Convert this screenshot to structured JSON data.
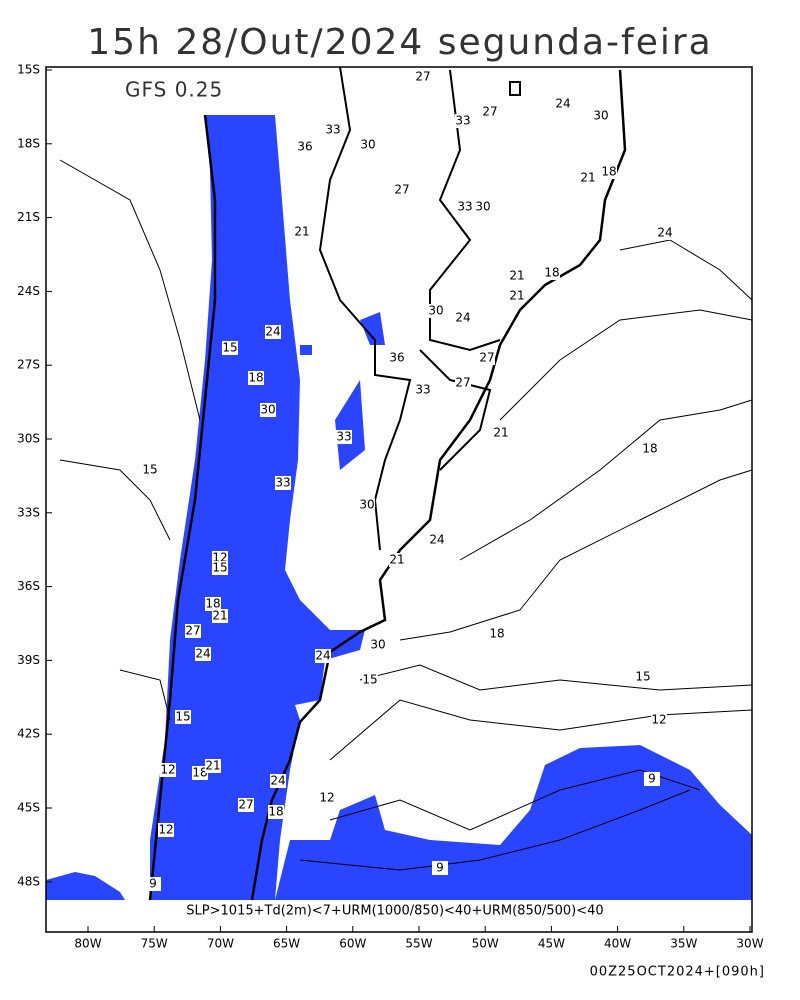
{
  "header": {
    "title": "15h 28/Out/2024 segunda-feira",
    "model": "GFS 0.25"
  },
  "axes": {
    "lat_labels": [
      "15S",
      "18S",
      "21S",
      "24S",
      "27S",
      "30S",
      "33S",
      "36S",
      "39S",
      "42S",
      "45S",
      "48S"
    ],
    "lon_labels": [
      "80W",
      "75W",
      "70W",
      "65W",
      "60W",
      "55W",
      "50W",
      "45W",
      "40W",
      "35W",
      "30W"
    ]
  },
  "contour_labels": [
    "27",
    "24",
    "30",
    "27",
    "33",
    "30",
    "36",
    "33",
    "27",
    "18",
    "21",
    "33",
    "30",
    "24",
    "21",
    "18",
    "21",
    "30",
    "24",
    "36",
    "27",
    "33",
    "27",
    "21",
    "18",
    "30",
    "24",
    "21",
    "15",
    "18",
    "15",
    "12",
    "9",
    "12",
    "9",
    "15",
    "24",
    "30",
    "33",
    "12",
    "15",
    "18",
    "21",
    "27",
    "24",
    "15",
    "12",
    "18",
    "21",
    "24",
    "27",
    "18",
    "12",
    "9",
    "24",
    "30",
    "18",
    "15",
    "21",
    "33"
  ],
  "footer": {
    "criteria": "SLP>1015+Td(2m)<7+URM(1000/850)<40+URM(850/500)<40",
    "run": "00Z25OCT2024+[090h]"
  }
}
